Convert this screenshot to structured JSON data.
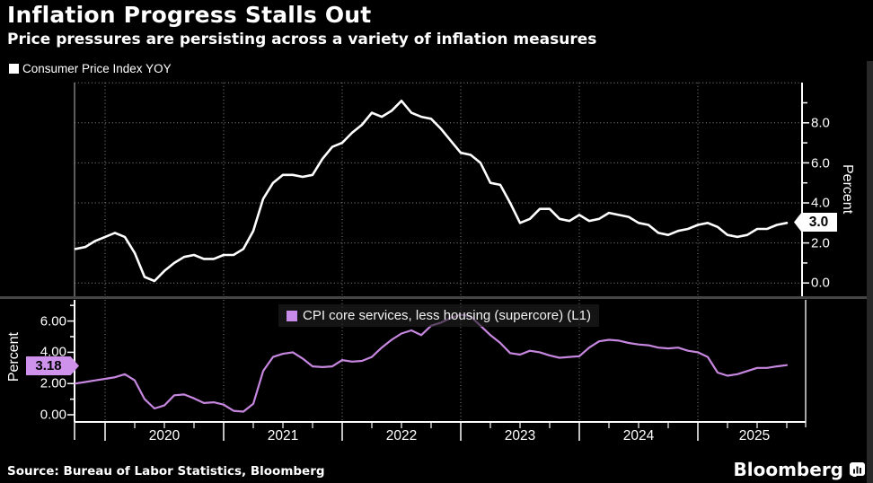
{
  "header": {
    "title": "Inflation Progress Stalls Out",
    "subtitle": "Price pressures are persisting across a variety of inflation measures"
  },
  "legends": {
    "top": {
      "label": "Consumer Price Index YOY",
      "swatch_color": "#ffffff"
    },
    "bottom": {
      "label": "CPI core services, less housing (supercore) (L1)",
      "swatch_color": "#c98be8"
    }
  },
  "axes": {
    "top": {
      "title": "Percent",
      "tick_labels": [
        "8.0",
        "6.0",
        "4.0",
        "2.0",
        "0.0"
      ],
      "last_value_badge": "3.0"
    },
    "bottom": {
      "title": "Percent",
      "tick_labels": [
        "6.00",
        "4.00",
        "2.00",
        "0.00"
      ],
      "last_value_badge": "3.18"
    },
    "x": {
      "year_labels": [
        "2020",
        "2021",
        "2022",
        "2023",
        "2024",
        "2025"
      ]
    }
  },
  "footer": {
    "source": "Source: Bureau of Labor Statistics, Bloomberg",
    "brand": "Bloomberg"
  },
  "colors": {
    "background": "#000000",
    "cpi_line": "#ffffff",
    "supercore_line": "#c787e0",
    "supercore_badge": "#cf92ec",
    "top_badge": "#ffffff",
    "grid": "#8a8a8a",
    "axis": "#ffffff",
    "plot_left_edge": "#9a9a9a",
    "divider": "#454545"
  },
  "chart_data": [
    {
      "type": "line",
      "panel": "top",
      "title": "Consumer Price Index YOY",
      "ylabel": "Percent",
      "yticks_labeled": [
        0,
        2,
        4,
        6,
        8
      ],
      "ylim": [
        -0.7,
        10.3
      ],
      "frequency": "monthly",
      "x_start_month": "2019-09",
      "x_end_month": "2025-09",
      "x_year_ticks": [
        2020,
        2021,
        2022,
        2023,
        2024,
        2025
      ],
      "grid": "horizontal-dotted + vertical-year-dotted",
      "legend_position": "top-left",
      "last_value": 3.0,
      "values": [
        1.7,
        1.8,
        2.1,
        2.3,
        2.5,
        2.3,
        1.5,
        0.3,
        0.1,
        0.6,
        1.0,
        1.3,
        1.4,
        1.2,
        1.2,
        1.4,
        1.4,
        1.7,
        2.6,
        4.2,
        5.0,
        5.4,
        5.4,
        5.3,
        5.4,
        6.2,
        6.8,
        7.0,
        7.5,
        7.9,
        8.5,
        8.3,
        8.6,
        9.1,
        8.5,
        8.3,
        8.2,
        7.7,
        7.1,
        6.5,
        6.4,
        6.0,
        5.0,
        4.9,
        4.0,
        3.0,
        3.2,
        3.7,
        3.7,
        3.2,
        3.1,
        3.4,
        3.1,
        3.2,
        3.5,
        3.4,
        3.3,
        3.0,
        2.9,
        2.5,
        2.4,
        2.6,
        2.7,
        2.9,
        3.0,
        2.8,
        2.4,
        2.3,
        2.4,
        2.7,
        2.7,
        2.9,
        3.0
      ]
    },
    {
      "type": "line",
      "panel": "bottom",
      "title": "CPI core services, less housing (supercore) (L1)",
      "ylabel": "Percent",
      "yticks_labeled": [
        0,
        2,
        4,
        6
      ],
      "ylim": [
        -0.5,
        7.4
      ],
      "frequency": "monthly",
      "x_start_month": "2019-09",
      "x_end_month": "2025-09",
      "x_year_ticks": [
        2020,
        2021,
        2022,
        2023,
        2024,
        2025
      ],
      "grid": "vertical-year-dotted",
      "legend_position": "top-center",
      "last_value": 3.18,
      "values": [
        2.0,
        2.1,
        2.2,
        2.3,
        2.4,
        2.6,
        2.2,
        1.0,
        0.4,
        0.6,
        1.25,
        1.3,
        1.05,
        0.75,
        0.8,
        0.65,
        0.25,
        0.2,
        0.7,
        2.8,
        3.7,
        3.9,
        4.0,
        3.6,
        3.1,
        3.05,
        3.1,
        3.5,
        3.4,
        3.45,
        3.7,
        4.3,
        4.8,
        5.2,
        5.4,
        5.1,
        5.7,
        5.9,
        6.2,
        6.4,
        6.3,
        5.7,
        5.1,
        4.6,
        3.95,
        3.85,
        4.1,
        4.0,
        3.8,
        3.65,
        3.7,
        3.75,
        4.3,
        4.7,
        4.8,
        4.75,
        4.6,
        4.5,
        4.45,
        4.3,
        4.25,
        4.3,
        4.1,
        4.0,
        3.7,
        2.7,
        2.5,
        2.6,
        2.8,
        3.0,
        3.0,
        3.1,
        3.18
      ]
    }
  ]
}
